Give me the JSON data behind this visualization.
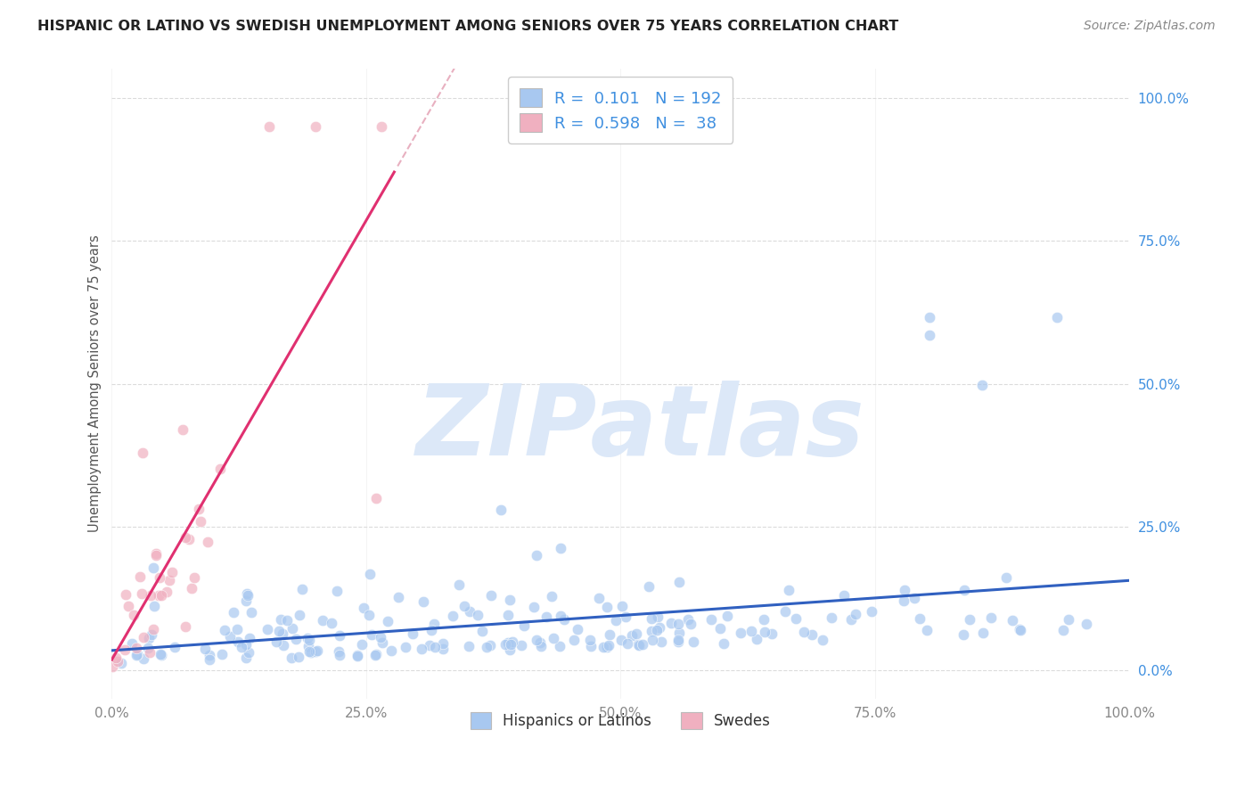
{
  "title": "HISPANIC OR LATINO VS SWEDISH UNEMPLOYMENT AMONG SENIORS OVER 75 YEARS CORRELATION CHART",
  "source": "Source: ZipAtlas.com",
  "ylabel": "Unemployment Among Seniors over 75 years",
  "xlim": [
    0.0,
    1.0
  ],
  "ylim": [
    -0.05,
    1.05
  ],
  "xticks": [
    0.0,
    0.25,
    0.5,
    0.75,
    1.0
  ],
  "xticklabels": [
    "0.0%",
    "25.0%",
    "50.0%",
    "75.0%",
    "100.0%"
  ],
  "yticks": [
    0.0,
    0.25,
    0.5,
    0.75,
    1.0
  ],
  "yticklabels": [
    "0.0%",
    "25.0%",
    "50.0%",
    "75.0%",
    "100.0%"
  ],
  "series1_color": "#a8c8f0",
  "series2_color": "#f0b0c0",
  "series1_line_color": "#3060c0",
  "series2_line_color": "#e03070",
  "series2_dashed_color": "#e8b0c0",
  "series1_label": "Hispanics or Latinos",
  "series2_label": "Swedes",
  "R1": 0.101,
  "N1": 192,
  "R2": 0.598,
  "N2": 38,
  "legend_color": "#4090e0",
  "watermark": "ZIPatlas",
  "watermark_color": "#dce8f8",
  "background_color": "#ffffff",
  "grid_color": "#e0e0e0",
  "grid_dash_color": "#d8d8d8",
  "seed": 42
}
